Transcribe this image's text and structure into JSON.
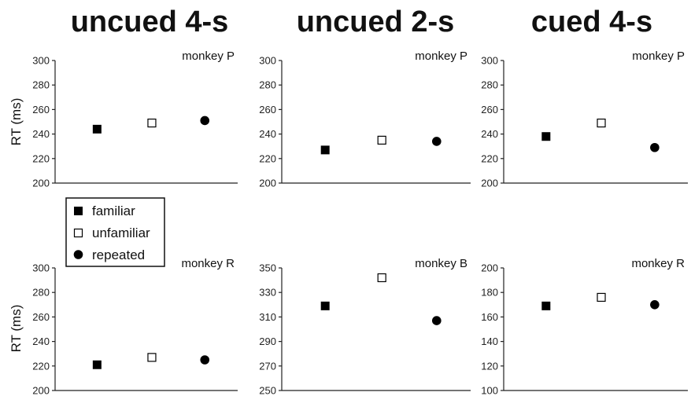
{
  "column_titles": [
    "uncued 4-s",
    "uncued 2-s",
    "cued 4-s"
  ],
  "ylabel": "RT (ms)",
  "legend": [
    {
      "label": "familiar",
      "marker": "filled-square"
    },
    {
      "label": "unfamiliar",
      "marker": "open-square"
    },
    {
      "label": "repeated",
      "marker": "filled-circle"
    }
  ],
  "colors": {
    "marker": "#000000",
    "axis": "#222222",
    "background": "#ffffff"
  },
  "chart_data": [
    {
      "type": "scatter",
      "title": "uncued 4-s",
      "panel_label": "monkey P",
      "categories": [
        "familiar",
        "unfamiliar",
        "repeated"
      ],
      "values": [
        244,
        249,
        251
      ],
      "ylim": [
        200,
        300
      ],
      "yticks": [
        "200",
        "220",
        "240",
        "260",
        "280",
        "300"
      ]
    },
    {
      "type": "scatter",
      "title": "uncued 2-s",
      "panel_label": "monkey P",
      "categories": [
        "familiar",
        "unfamiliar",
        "repeated"
      ],
      "values": [
        227,
        235,
        234
      ],
      "ylim": [
        200,
        300
      ],
      "yticks": [
        "200",
        "220",
        "240",
        "260",
        "280",
        "300"
      ]
    },
    {
      "type": "scatter",
      "title": "cued 4-s",
      "panel_label": "monkey P",
      "categories": [
        "familiar",
        "unfamiliar",
        "repeated"
      ],
      "values": [
        238,
        249,
        229
      ],
      "ylim": [
        200,
        300
      ],
      "yticks": [
        "200",
        "220",
        "240",
        "260",
        "280",
        "300"
      ]
    },
    {
      "type": "scatter",
      "title": "uncued 4-s",
      "panel_label": "monkey R",
      "categories": [
        "familiar",
        "unfamiliar",
        "repeated"
      ],
      "values": [
        221,
        227,
        225
      ],
      "ylim": [
        200,
        300
      ],
      "yticks": [
        "200",
        "220",
        "240",
        "260",
        "280",
        "300"
      ]
    },
    {
      "type": "scatter",
      "title": "uncued 2-s",
      "panel_label": "monkey B",
      "categories": [
        "familiar",
        "unfamiliar",
        "repeated"
      ],
      "values": [
        319,
        342,
        307
      ],
      "ylim": [
        250,
        350
      ],
      "yticks": [
        "250",
        "270",
        "290",
        "310",
        "330",
        "350"
      ]
    },
    {
      "type": "scatter",
      "title": "cued 4-s",
      "panel_label": "monkey R",
      "categories": [
        "familiar",
        "unfamiliar",
        "repeated"
      ],
      "values": [
        169,
        176,
        170
      ],
      "ylim": [
        100,
        200
      ],
      "yticks": [
        "100",
        "120",
        "140",
        "160",
        "180",
        "200"
      ]
    }
  ]
}
